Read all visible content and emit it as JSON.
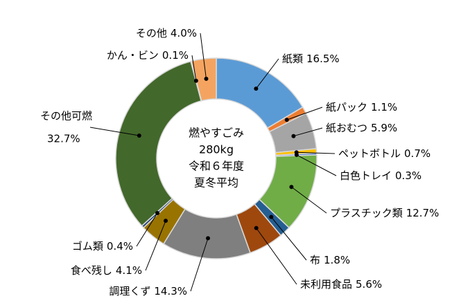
{
  "chart_data": {
    "type": "donut",
    "center_text": [
      "燃やすごみ",
      "280kg",
      "令和６年度",
      "夏冬平均"
    ],
    "categories": [
      "紙類",
      "紙パック",
      "紙おむつ",
      "ペットボトル",
      "白色トレイ",
      "プラスチック類",
      "布",
      "未利用食品",
      "調理くず",
      "食べ残し",
      "ゴム類",
      "その他可燃",
      "かん・ビン",
      "その他"
    ],
    "values": [
      16.5,
      1.1,
      5.9,
      0.7,
      0.3,
      12.7,
      1.8,
      5.6,
      14.3,
      4.1,
      0.4,
      32.7,
      0.1,
      4.0
    ],
    "value_labels": [
      "16.5%",
      "1.1%",
      "5.9%",
      "0.7%",
      "0.3%",
      "12.7%",
      "1.8%",
      "5.6%",
      "14.3%",
      "4.1%",
      "0.4%",
      "32.7%",
      "0.1%",
      "4.0%"
    ],
    "colors": [
      "#5b9bd5",
      "#ed7d31",
      "#a5a5a5",
      "#ffc000",
      "#4472c4",
      "#70ad47",
      "#255e91",
      "#9e480e",
      "#7f7f7f",
      "#997300",
      "#264478",
      "#43682b",
      "#9dc3e6",
      "#f4a460"
    ]
  }
}
